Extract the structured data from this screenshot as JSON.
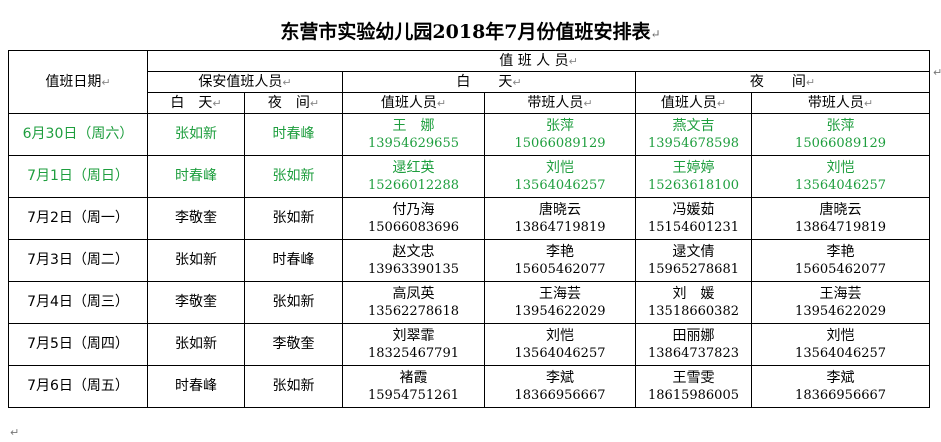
{
  "title": "东营市实验幼儿园2018年7月份值班安排表",
  "headers": {
    "date": "值班日期",
    "staff": "值 班 人 员",
    "security": "保安值班人员",
    "day": "白　　天",
    "night": "夜　　间",
    "sec_day": "白　天",
    "sec_night": "夜　间",
    "duty_person": "值班人员",
    "lead_person": "带班人员"
  },
  "rows": [
    {
      "date": "6月30日（周六）",
      "sec_day": "张如新",
      "sec_night": "时春峰",
      "day_duty_name": "王　娜",
      "day_duty_phone": "13954629655",
      "day_lead_name": "张萍",
      "day_lead_phone": "15066089129",
      "night_duty_name": "燕文吉",
      "night_duty_phone": "13954678598",
      "night_lead_name": "张萍",
      "night_lead_phone": "15066089129"
    },
    {
      "date": "7月1日（周日）",
      "sec_day": "时春峰",
      "sec_night": "张如新",
      "day_duty_name": "逯红英",
      "day_duty_phone": "15266012288",
      "day_lead_name": "刘恺",
      "day_lead_phone": "13564046257",
      "night_duty_name": "王婷婷",
      "night_duty_phone": "15263618100",
      "night_lead_name": "刘恺",
      "night_lead_phone": "13564046257"
    },
    {
      "date": "7月2日（周一）",
      "sec_day": "李敬奎",
      "sec_night": "张如新",
      "day_duty_name": "付乃海",
      "day_duty_phone": "15066083696",
      "day_lead_name": "唐晓云",
      "day_lead_phone": "13864719819",
      "night_duty_name": "冯媛茹",
      "night_duty_phone": "15154601231",
      "night_lead_name": "唐晓云",
      "night_lead_phone": "13864719819"
    },
    {
      "date": "7月3日（周二）",
      "sec_day": "张如新",
      "sec_night": "时春峰",
      "day_duty_name": "赵文忠",
      "day_duty_phone": "13963390135",
      "day_lead_name": "李艳",
      "day_lead_phone": "15605462077",
      "night_duty_name": "逯文倩",
      "night_duty_phone": "15965278681",
      "night_lead_name": "李艳",
      "night_lead_phone": "15605462077"
    },
    {
      "date": "7月4日（周三）",
      "sec_day": "李敬奎",
      "sec_night": "张如新",
      "day_duty_name": "高凤英",
      "day_duty_phone": "13562278618",
      "day_lead_name": "王海芸",
      "day_lead_phone": "13954622029",
      "night_duty_name": "刘　媛",
      "night_duty_phone": "13518660382",
      "night_lead_name": "王海芸",
      "night_lead_phone": "13954622029"
    },
    {
      "date": "7月5日（周四）",
      "sec_day": "张如新",
      "sec_night": "李敬奎",
      "day_duty_name": "刘翠霏",
      "day_duty_phone": "18325467791",
      "day_lead_name": "刘恺",
      "day_lead_phone": "13564046257",
      "night_duty_name": "田丽娜",
      "night_duty_phone": "13864737823",
      "night_lead_name": "刘恺",
      "night_lead_phone": "13564046257"
    },
    {
      "date": "7月6日（周五）",
      "sec_day": "时春峰",
      "sec_night": "张如新",
      "day_duty_name": "褚霞",
      "day_duty_phone": "15954751261",
      "day_lead_name": "李斌",
      "day_lead_phone": "18366956667",
      "night_duty_name": "王雪雯",
      "night_duty_phone": "18615986005",
      "night_lead_name": "李斌",
      "night_lead_phone": "18366956667"
    }
  ],
  "colors": {
    "weekend_text": "#1e9e3e"
  }
}
